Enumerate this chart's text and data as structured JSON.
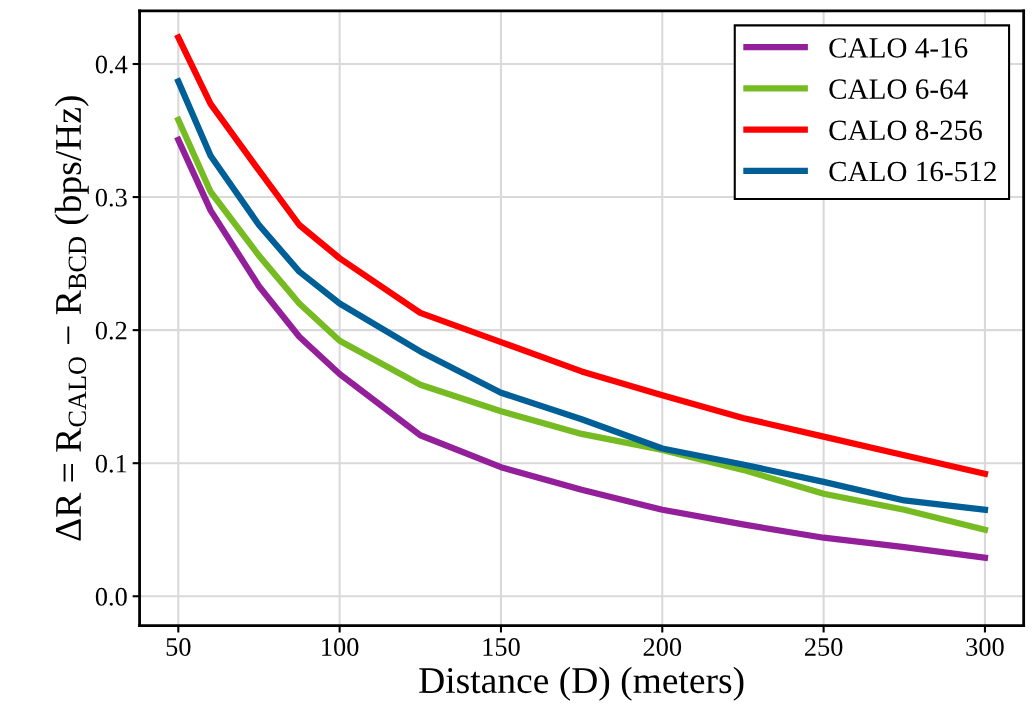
{
  "chart_data": {
    "type": "line",
    "xlabel": "Distance (D) (meters)",
    "ylabel": "ΔR = R$_{CALO}$ − R$_{BCD}$ (bps/Hz)",
    "x": [
      50,
      60,
      75,
      87.5,
      100,
      125,
      150,
      175,
      200,
      225,
      250,
      275,
      300
    ],
    "series": [
      {
        "name": "CALO 4-16",
        "color": "#93209a",
        "values": [
          0.343,
          0.29,
          0.233,
          0.195,
          0.167,
          0.121,
          0.097,
          0.08,
          0.065,
          0.054,
          0.044,
          0.037,
          0.029
        ]
      },
      {
        "name": "CALO 6-64",
        "color": "#76bb22",
        "values": [
          0.358,
          0.304,
          0.256,
          0.22,
          0.192,
          0.159,
          0.139,
          0.122,
          0.11,
          0.095,
          0.077,
          0.065,
          0.05
        ]
      },
      {
        "name": "CALO 8-256",
        "color": "#ff0000",
        "values": [
          0.42,
          0.37,
          0.32,
          0.279,
          0.254,
          0.213,
          0.191,
          0.169,
          0.151,
          0.134,
          0.12,
          0.106,
          0.092
        ]
      },
      {
        "name": "CALO 16-512",
        "color": "#005f97",
        "values": [
          0.387,
          0.331,
          0.279,
          0.244,
          0.22,
          0.184,
          0.153,
          0.133,
          0.111,
          0.099,
          0.086,
          0.072,
          0.065
        ]
      }
    ],
    "xlim": [
      38,
      312
    ],
    "ylim": [
      -0.022,
      0.44
    ],
    "xticks": [
      50,
      100,
      150,
      200,
      250,
      300
    ],
    "yticks": [
      {
        "value": 0,
        "label": "0.0"
      },
      0.1,
      0.2,
      0.3,
      0.4
    ],
    "grid": true,
    "legend": "top right",
    "marker": "none",
    "line_style": "solid"
  }
}
